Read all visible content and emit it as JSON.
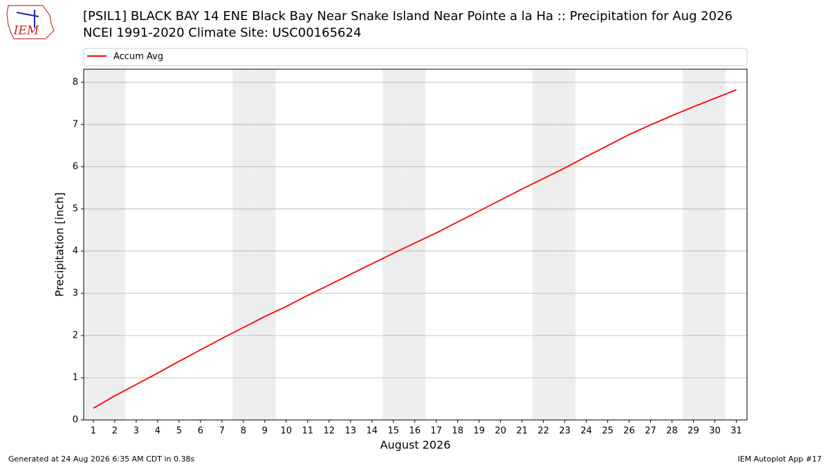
{
  "logo_text": "IEM",
  "footer_left": "Generated at 24 Aug 2026 6:35 AM CDT in 0.38s",
  "footer_right": "IEM Autoplot App #17",
  "chart_data": {
    "type": "line",
    "title": "[PSIL1] BLACK BAY 14 ENE Black Bay Near Snake Island Near Pointe a la Ha :: Precipitation for Aug 2026",
    "subtitle": "NCEI 1991-2020 Climate Site: USC00165624",
    "xlabel": "August 2026",
    "ylabel": "Precipitation [inch]",
    "x": [
      1,
      2,
      3,
      4,
      5,
      6,
      7,
      8,
      9,
      10,
      11,
      12,
      13,
      14,
      15,
      16,
      17,
      18,
      19,
      20,
      21,
      22,
      23,
      24,
      25,
      26,
      27,
      28,
      29,
      30,
      31
    ],
    "series": [
      {
        "name": "Accum Avg",
        "color": "#ff0000",
        "values": [
          0.28,
          0.57,
          0.84,
          1.11,
          1.39,
          1.66,
          1.93,
          2.19,
          2.45,
          2.69,
          2.95,
          3.2,
          3.45,
          3.7,
          3.95,
          4.19,
          4.43,
          4.69,
          4.95,
          5.21,
          5.47,
          5.72,
          5.97,
          6.24,
          6.5,
          6.76,
          6.99,
          7.21,
          7.42,
          7.62,
          7.82
        ]
      }
    ],
    "shaded_days": [
      1,
      2,
      8,
      9,
      15,
      16,
      22,
      23,
      29,
      30
    ],
    "shade_color": "#eeeeee",
    "xlim": [
      0.55,
      31.5
    ],
    "xticks": [
      1,
      2,
      3,
      4,
      5,
      6,
      7,
      8,
      9,
      10,
      11,
      12,
      13,
      14,
      15,
      16,
      17,
      18,
      19,
      20,
      21,
      22,
      23,
      24,
      25,
      26,
      27,
      28,
      29,
      30,
      31
    ],
    "ylim": [
      0,
      8.31
    ],
    "yticks": [
      0,
      1,
      2,
      3,
      4,
      5,
      6,
      7,
      8
    ],
    "grid": "y",
    "legend": "top"
  }
}
